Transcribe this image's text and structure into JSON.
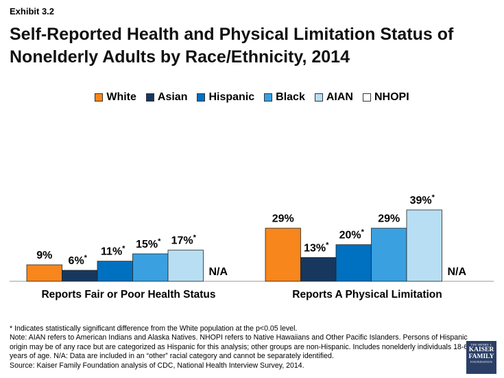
{
  "exhibit": "Exhibit 3.2",
  "title": "Self-Reported Health and Physical Limitation Status of Nonelderly Adults by Race/Ethnicity, 2014",
  "colors": {
    "White": "#f7861c",
    "Asian": "#17375e",
    "Hispanic": "#0070c0",
    "Black": "#3aa0e0",
    "AIAN": "#b8def3",
    "NHOPI": "#ffffff"
  },
  "chart_data": {
    "type": "bar",
    "categories": [
      "Reports Fair or Poor Health Status",
      "Reports A Physical Limitation"
    ],
    "series": [
      {
        "name": "White",
        "values": [
          9,
          29
        ],
        "labels": [
          "9%",
          "29%"
        ],
        "sig": [
          false,
          false
        ]
      },
      {
        "name": "Asian",
        "values": [
          6,
          13
        ],
        "labels": [
          "6%",
          "13%"
        ],
        "sig": [
          true,
          true
        ]
      },
      {
        "name": "Hispanic",
        "values": [
          11,
          20
        ],
        "labels": [
          "11%",
          "20%"
        ],
        "sig": [
          true,
          true
        ]
      },
      {
        "name": "Black",
        "values": [
          15,
          29
        ],
        "labels": [
          "15%",
          "29%"
        ],
        "sig": [
          true,
          false
        ]
      },
      {
        "name": "AIAN",
        "values": [
          17,
          39
        ],
        "labels": [
          "17%",
          "39%"
        ],
        "sig": [
          true,
          true
        ]
      },
      {
        "name": "NHOPI",
        "values": [
          null,
          null
        ],
        "labels": [
          "N/A",
          "N/A"
        ],
        "sig": [
          false,
          false
        ]
      }
    ],
    "ylim": [
      0,
      45
    ],
    "legend": "top-center"
  },
  "footnotes": [
    "* Indicates statistically significant difference from the White population at the p<0.05 level.",
    "Note: AIAN refers to American Indians and Alaska Natives. NHOPI refers to Native Hawaiians and Other Pacific Islanders. Persons of Hispanic origin may be of any race but are categorized as Hispanic for this analysis; other groups are non-Hispanic. Includes nonelderly individuals 18-64 years of age. N/A: Data are included in an “other” racial category and cannot be separately identified.",
    "Source: Kaiser Family Foundation analysis of CDC, National Health Interview Survey, 2014."
  ],
  "logo": {
    "line1": "THE HENRY J.",
    "line2": "KAISER",
    "line3": "FAMILY",
    "line4": "FOUNDATION"
  }
}
